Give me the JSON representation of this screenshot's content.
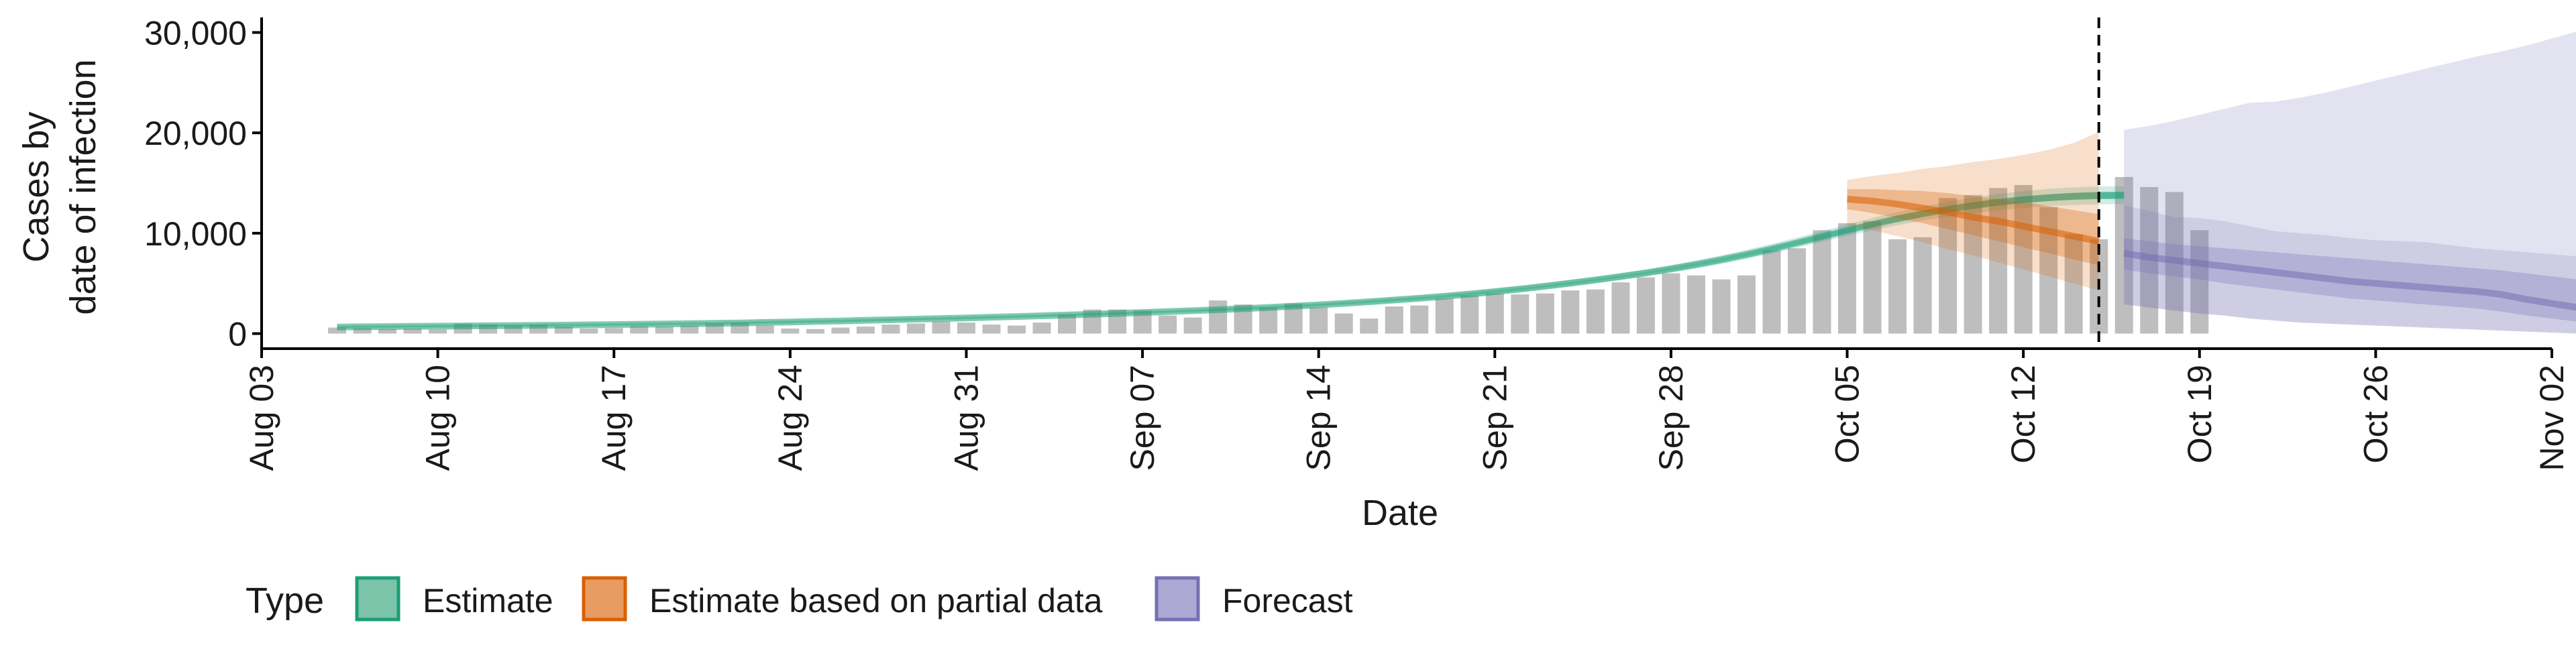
{
  "chart_data": {
    "type": "bar",
    "xlabel": "Date",
    "ylabel_lines": [
      "Cases by",
      "date of infection"
    ],
    "ylim": [
      -1500,
      31500
    ],
    "y_ticks": [
      0,
      10000,
      20000,
      30000
    ],
    "y_tick_labels": [
      "0",
      "10,000",
      "20,000",
      "30,000"
    ],
    "x_domain": [
      "2020-08-03",
      "2020-11-02"
    ],
    "x_ticks": [
      "2020-08-03",
      "2020-08-10",
      "2020-08-17",
      "2020-08-24",
      "2020-08-31",
      "2020-09-07",
      "2020-09-14",
      "2020-09-21",
      "2020-09-28",
      "2020-10-05",
      "2020-10-12",
      "2020-10-19",
      "2020-10-26",
      "2020-11-02"
    ],
    "x_tick_labels": [
      "Aug 03",
      "Aug 10",
      "Aug 17",
      "Aug 24",
      "Aug 31",
      "Sep 07",
      "Sep 14",
      "Sep 21",
      "Sep 28",
      "Oct 05",
      "Oct 12",
      "Oct 19",
      "Oct 26",
      "Nov 02"
    ],
    "vline_date": "2020-10-15",
    "grid": false,
    "legend_position": "bottom-left",
    "legend_title": "Type",
    "colors": {
      "bars": "#bebebe",
      "estimate": "#1b9e77",
      "partial": "#d95f02",
      "forecast": "#7570b3"
    },
    "legend": [
      {
        "label": "Estimate",
        "fill": "#7bc3a9",
        "border": "#1b9e77"
      },
      {
        "label": "Estimate based on partial data",
        "fill": "#e89c62",
        "border": "#d95f02"
      },
      {
        "label": "Forecast",
        "fill": "#aba8d3",
        "border": "#7570b3"
      }
    ],
    "observed_cases": {
      "start_date": "2020-08-06",
      "values": [
        600,
        550,
        450,
        500,
        400,
        1000,
        900,
        800,
        900,
        700,
        500,
        550,
        750,
        700,
        800,
        1000,
        1100,
        800,
        500,
        450,
        600,
        700,
        900,
        1000,
        1200,
        1100,
        900,
        800,
        1100,
        1900,
        2400,
        2400,
        2300,
        1800,
        1600,
        3300,
        2900,
        2600,
        3000,
        2600,
        2000,
        1500,
        2700,
        2800,
        3500,
        3800,
        4000,
        3900,
        4000,
        4300,
        4400,
        5100,
        5600,
        6000,
        5800,
        5400,
        5800,
        8300,
        8500,
        10300,
        11000,
        11200,
        9400,
        9600,
        13500,
        13800,
        14500,
        14800,
        12600,
        9900,
        9400,
        15600,
        14600,
        14100,
        10300
      ]
    },
    "series": [
      {
        "name": "Estimate",
        "start_date": "2020-08-06",
        "median": [
          650,
          680,
          700,
          720,
          740,
          760,
          780,
          800,
          820,
          840,
          870,
          900,
          930,
          960,
          990,
          1020,
          1060,
          1110,
          1160,
          1210,
          1260,
          1320,
          1380,
          1440,
          1500,
          1560,
          1630,
          1700,
          1770,
          1850,
          1930,
          2010,
          2100,
          2190,
          2280,
          2380,
          2480,
          2600,
          2720,
          2860,
          3010,
          3170,
          3340,
          3520,
          3720,
          3940,
          4180,
          4440,
          4720,
          5020,
          5340,
          5680,
          6040,
          6440,
          6880,
          7360,
          7880,
          8440,
          9040,
          9660,
          10280,
          10880,
          11440,
          11940,
          12380,
          12760,
          13080,
          13340,
          13540,
          13680,
          13760,
          13780
        ],
        "inner_lower": [
          580,
          610,
          630,
          650,
          670,
          690,
          710,
          730,
          750,
          770,
          800,
          830,
          860,
          890,
          920,
          950,
          990,
          1040,
          1090,
          1140,
          1190,
          1250,
          1310,
          1370,
          1430,
          1490,
          1560,
          1630,
          1700,
          1780,
          1860,
          1940,
          2030,
          2120,
          2210,
          2300,
          2400,
          2520,
          2640,
          2770,
          2920,
          3080,
          3250,
          3430,
          3620,
          3840,
          4080,
          4330,
          4610,
          4900,
          5220,
          5560,
          5920,
          6300,
          6730,
          7200,
          7710,
          8260,
          8850,
          9460,
          10060,
          10640,
          11180,
          11660,
          12090,
          12450,
          12760,
          13010,
          13200,
          13330,
          13400,
          13420
        ],
        "inner_upper": [
          720,
          750,
          770,
          790,
          810,
          830,
          850,
          870,
          890,
          910,
          940,
          970,
          1000,
          1030,
          1060,
          1090,
          1130,
          1180,
          1230,
          1280,
          1330,
          1390,
          1450,
          1510,
          1570,
          1630,
          1700,
          1770,
          1840,
          1920,
          2000,
          2080,
          2170,
          2260,
          2350,
          2460,
          2560,
          2680,
          2800,
          2950,
          3100,
          3260,
          3430,
          3610,
          3820,
          4040,
          4280,
          4550,
          4830,
          5140,
          5460,
          5800,
          6160,
          6580,
          7030,
          7520,
          8050,
          8620,
          9230,
          9860,
          10500,
          11120,
          11700,
          12220,
          12670,
          13070,
          13400,
          13670,
          13880,
          14030,
          14120,
          14140
        ],
        "outer_lower": [
          480,
          510,
          530,
          550,
          570,
          590,
          610,
          630,
          650,
          670,
          700,
          730,
          760,
          790,
          820,
          850,
          890,
          940,
          990,
          1040,
          1090,
          1150,
          1210,
          1270,
          1330,
          1390,
          1460,
          1530,
          1600,
          1680,
          1760,
          1840,
          1930,
          2020,
          2110,
          2200,
          2300,
          2410,
          2530,
          2660,
          2800,
          2950,
          3110,
          3290,
          3480,
          3690,
          3920,
          4170,
          4440,
          4720,
          5030,
          5360,
          5710,
          6080,
          6490,
          6940,
          7440,
          7970,
          8550,
          9140,
          9720,
          10280,
          10800,
          11260,
          11660,
          12000,
          12290,
          12520,
          12700,
          12820,
          12880,
          12900
        ],
        "outer_upper": [
          820,
          850,
          870,
          890,
          910,
          930,
          950,
          970,
          990,
          1010,
          1040,
          1070,
          1100,
          1130,
          1160,
          1190,
          1230,
          1280,
          1330,
          1380,
          1430,
          1490,
          1550,
          1610,
          1670,
          1730,
          1800,
          1870,
          1940,
          2020,
          2100,
          2180,
          2270,
          2360,
          2450,
          2560,
          2660,
          2780,
          2900,
          3060,
          3220,
          3390,
          3570,
          3760,
          3970,
          4200,
          4450,
          4720,
          5010,
          5330,
          5660,
          6010,
          6380,
          6820,
          7290,
          7800,
          8350,
          8940,
          9570,
          10220,
          10880,
          11520,
          12120,
          12660,
          13140,
          13560,
          13910,
          14190,
          14410,
          14570,
          14660,
          14680
        ]
      },
      {
        "name": "Estimate based on partial data",
        "start_date": "2020-10-05",
        "median": [
          13400,
          13200,
          12900,
          12500,
          12100,
          11600,
          11200,
          10700,
          10200,
          9700,
          9200
        ],
        "inner_lower": [
          12400,
          12000,
          11500,
          11000,
          10400,
          9800,
          9200,
          8600,
          8000,
          7400,
          6800
        ],
        "inner_upper": [
          14400,
          14400,
          14300,
          14200,
          14000,
          13700,
          13400,
          13100,
          12700,
          12300,
          11900
        ],
        "outer_lower": [
          10800,
          10300,
          9700,
          9100,
          8400,
          7800,
          7100,
          6400,
          5700,
          5000,
          4300
        ],
        "outer_upper": [
          15300,
          15700,
          16000,
          16400,
          16700,
          17100,
          17400,
          17800,
          18300,
          19000,
          20100
        ]
      },
      {
        "name": "Forecast",
        "start_date": "2020-10-16",
        "median": [
          8000,
          7600,
          7300,
          7000,
          6700,
          6400,
          6100,
          5800,
          5500,
          5200,
          5000,
          4800,
          4600,
          4400,
          4200,
          3900,
          3400,
          3000,
          2600
        ],
        "inner_lower": [
          6400,
          6000,
          5700,
          5400,
          5000,
          4700,
          4400,
          4100,
          3800,
          3500,
          3300,
          3100,
          2900,
          2700,
          2500,
          2200,
          1800,
          1500,
          1200
        ],
        "inner_upper": [
          9500,
          9200,
          8900,
          8700,
          8500,
          8300,
          8100,
          7900,
          7700,
          7500,
          7300,
          7100,
          6900,
          6700,
          6500,
          6300,
          6000,
          5700,
          5400
        ],
        "outer_lower": [
          2900,
          2600,
          2300,
          2000,
          1800,
          1500,
          1300,
          1100,
          1000,
          900,
          800,
          700,
          600,
          500,
          400,
          300,
          200,
          100,
          0
        ],
        "outer_upper": [
          12800,
          12200,
          11600,
          11500,
          11200,
          10700,
          10200,
          10000,
          9800,
          9500,
          9300,
          9200,
          9100,
          8800,
          8500,
          8300,
          8100,
          7900,
          7700
        ]
      }
    ],
    "forecast_outer_upper_extended": {
      "start_date": "2020-10-16",
      "values": [
        20300,
        20700,
        21200,
        21800,
        22400,
        23000,
        23100,
        23500,
        24000,
        24600,
        25200,
        25800,
        26400,
        27000,
        27600,
        28100,
        28700,
        29400,
        30100
      ]
    }
  }
}
